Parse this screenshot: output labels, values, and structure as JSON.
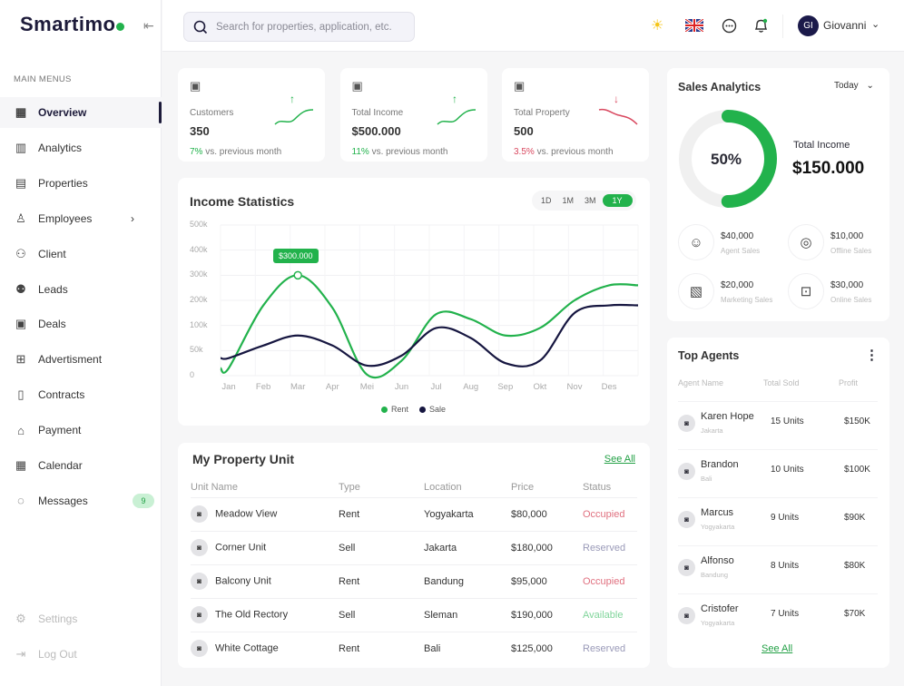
{
  "app": {
    "logo": "Smartimo"
  },
  "sidebar": {
    "section_title": "MAIN MENUS",
    "items": [
      {
        "label": "Overview",
        "icon": "grid-icon",
        "active": true
      },
      {
        "label": "Analytics",
        "icon": "bar-chart-icon"
      },
      {
        "label": "Properties",
        "icon": "building-icon"
      },
      {
        "label": "Employees",
        "icon": "user-icon",
        "has_submenu": true
      },
      {
        "label": "Client",
        "icon": "users-icon"
      },
      {
        "label": "Leads",
        "icon": "group-icon"
      },
      {
        "label": "Deals",
        "icon": "briefcase-icon"
      },
      {
        "label": "Advertisment",
        "icon": "folder-plus-icon"
      },
      {
        "label": "Contracts",
        "icon": "document-icon"
      },
      {
        "label": "Payment",
        "icon": "bank-icon"
      },
      {
        "label": "Calendar",
        "icon": "calendar-icon"
      },
      {
        "label": "Messages",
        "icon": "chat-icon",
        "badge": "9"
      }
    ],
    "footer": [
      {
        "label": "Settings",
        "icon": "gear-icon"
      },
      {
        "label": "Log Out",
        "icon": "logout-icon"
      }
    ]
  },
  "header": {
    "search_placeholder": "Search for properties, application, etc.",
    "user_initials": "GI",
    "user_name": "Giovanni"
  },
  "stats": [
    {
      "label": "Customers",
      "value": "350",
      "change": "7%",
      "change_text": "vs. previous month",
      "trend": "up",
      "color": "#22b24c"
    },
    {
      "label": "Total Income",
      "value": "$500.000",
      "change": "11%",
      "change_text": "vs. previous month",
      "trend": "up",
      "color": "#22b24c"
    },
    {
      "label": "Total Property",
      "value": "500",
      "change": "3.5%",
      "change_text": "vs. previous month",
      "trend": "down",
      "color": "#d9485f"
    }
  ],
  "income": {
    "title": "Income Statistics",
    "ranges": [
      "1D",
      "1M",
      "3M",
      "1Y"
    ],
    "selected_range": "1Y",
    "tooltip": "$300.000"
  },
  "chart_data": {
    "type": "line",
    "categories": [
      "Jan",
      "Feb",
      "Mar",
      "Apr",
      "Mei",
      "Jun",
      "Jul",
      "Aug",
      "Sep",
      "Okt",
      "Nov",
      "Des"
    ],
    "y_ticks": [
      "0",
      "50k",
      "100k",
      "200k",
      "300k",
      "400k",
      "500k"
    ],
    "y_tick_values": [
      0,
      50000,
      100000,
      200000,
      300000,
      400000,
      500000
    ],
    "ylim": [
      0,
      500000
    ],
    "grid": true,
    "legend": "bottom",
    "series": [
      {
        "name": "Rent",
        "color": "#22b24c",
        "values": [
          15000,
          180000,
          300000,
          170000,
          2000,
          30000,
          145000,
          125000,
          80000,
          95000,
          200000,
          260000
        ]
      },
      {
        "name": "Sale",
        "color": "#161640",
        "values": [
          35000,
          60000,
          80000,
          60000,
          20000,
          40000,
          95000,
          75000,
          25000,
          30000,
          150000,
          180000
        ]
      }
    ]
  },
  "properties": {
    "title": "My Property Unit",
    "see_all": "See All",
    "columns": [
      "Unit Name",
      "Type",
      "Location",
      "Price",
      "Status"
    ],
    "rows": [
      {
        "name": "Meadow View",
        "type": "Rent",
        "location": "Yogyakarta",
        "price": "$80,000",
        "status": "Occupied"
      },
      {
        "name": "Corner Unit",
        "type": "Sell",
        "location": "Jakarta",
        "price": "$180,000",
        "status": "Reserved"
      },
      {
        "name": "Balcony Unit",
        "type": "Rent",
        "location": "Bandung",
        "price": "$95,000",
        "status": "Occupied"
      },
      {
        "name": "The Old Rectory",
        "type": "Sell",
        "location": "Sleman",
        "price": "$190,000",
        "status": "Available"
      },
      {
        "name": "White Cottage",
        "type": "Rent",
        "location": "Bali",
        "price": "$125,000",
        "status": "Reserved"
      }
    ],
    "status_colors": {
      "Occupied": "#e0707f",
      "Reserved": "#9a9ab8",
      "Available": "#7fd49a"
    }
  },
  "sales": {
    "title": "Sales Analytics",
    "period": "Today",
    "percent": "50%",
    "percent_value": 0.5,
    "total_label": "Total Income",
    "total_value": "$150.000",
    "items": [
      {
        "value": "$40,000",
        "label": "Agent Sales",
        "icon": "agent-icon"
      },
      {
        "value": "$10,000",
        "label": "Offline Sales",
        "icon": "camera-icon"
      },
      {
        "value": "$20,000",
        "label": "Marketing Sales",
        "icon": "marketing-icon"
      },
      {
        "value": "$30,000",
        "label": "Online Sales",
        "icon": "online-icon"
      }
    ]
  },
  "agents": {
    "title": "Top Agents",
    "columns": [
      "Agent Name",
      "Total Sold",
      "Profit"
    ],
    "see_all": "See All",
    "rows": [
      {
        "name": "Karen Hope",
        "city": "Jakarta",
        "units": "15 Units",
        "profit": "$150K"
      },
      {
        "name": "Brandon",
        "city": "Bali",
        "units": "10 Units",
        "profit": "$100K"
      },
      {
        "name": "Marcus",
        "city": "Yogyakarta",
        "units": "9 Units",
        "profit": "$90K"
      },
      {
        "name": "Alfonso",
        "city": "Bandung",
        "units": "8 Units",
        "profit": "$80K"
      },
      {
        "name": "Cristofer",
        "city": "Yogyakarta",
        "units": "7 Units",
        "profit": "$70K"
      }
    ]
  }
}
